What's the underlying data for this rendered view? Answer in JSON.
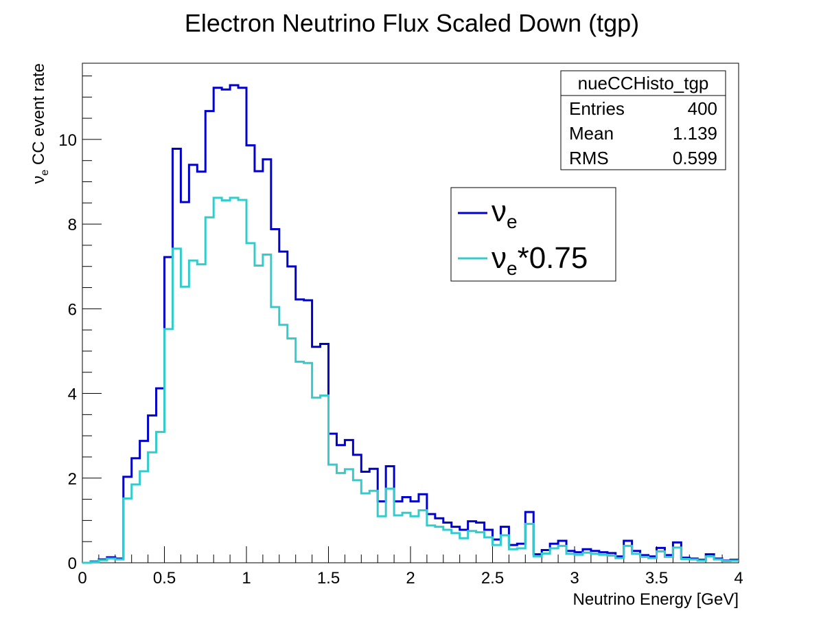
{
  "chart_data": {
    "type": "line",
    "title": "Electron Neutrino Flux Scaled Down (tgp)",
    "xlabel": "Neutrino Energy [GeV]",
    "ylabel": "CC event rate",
    "ylabel_symbol": "ν",
    "ylabel_subscript": "e",
    "xlim": [
      0,
      4
    ],
    "ylim": [
      0,
      11.8
    ],
    "x_ticks": [
      "0",
      "0.5",
      "1",
      "1.5",
      "2",
      "2.5",
      "3",
      "3.5",
      "4"
    ],
    "y_ticks": [
      "0",
      "2",
      "4",
      "6",
      "8",
      "10"
    ],
    "bin_width": 0.05,
    "legend_position": "upper-right",
    "stats_box": {
      "name": "nueCCHisto_tgp",
      "rows": [
        {
          "label": "Entries",
          "value": "400"
        },
        {
          "label": "Mean",
          "value": "1.139"
        },
        {
          "label": "RMS",
          "value": "0.599"
        }
      ]
    },
    "series": [
      {
        "name": "ν",
        "name_subscript": "e",
        "name_suffix": "",
        "color": "#0000cc",
        "values": [
          0.0,
          0.03,
          0.08,
          0.13,
          0.1,
          2.03,
          2.47,
          2.88,
          3.48,
          4.12,
          7.22,
          9.78,
          8.52,
          9.4,
          9.24,
          10.67,
          11.22,
          11.18,
          11.28,
          11.22,
          9.86,
          9.25,
          9.53,
          7.88,
          7.35,
          7.0,
          6.22,
          6.2,
          5.1,
          5.17,
          3.05,
          2.78,
          2.9,
          2.55,
          2.15,
          2.22,
          1.45,
          2.28,
          1.45,
          1.55,
          1.45,
          1.62,
          1.15,
          1.05,
          0.95,
          0.85,
          0.78,
          0.98,
          0.95,
          0.78,
          0.55,
          0.85,
          0.42,
          0.45,
          1.2,
          0.2,
          0.3,
          0.45,
          0.52,
          0.28,
          0.25,
          0.32,
          0.28,
          0.25,
          0.23,
          0.15,
          0.52,
          0.28,
          0.18,
          0.15,
          0.35,
          0.18,
          0.48,
          0.12,
          0.1,
          0.07,
          0.2,
          0.1,
          0.05,
          0.07
        ]
      },
      {
        "name": "ν",
        "name_subscript": "e",
        "name_suffix": "*0.75",
        "color": "#33cccc",
        "values": [
          0.0,
          0.02,
          0.06,
          0.1,
          0.08,
          1.52,
          1.85,
          2.16,
          2.61,
          3.09,
          5.52,
          7.42,
          6.52,
          7.14,
          7.05,
          8.16,
          8.62,
          8.56,
          8.62,
          8.57,
          7.55,
          7.02,
          7.28,
          6.04,
          5.62,
          5.3,
          4.75,
          4.72,
          3.9,
          3.95,
          2.32,
          2.12,
          2.21,
          1.95,
          1.64,
          1.7,
          1.1,
          1.75,
          1.12,
          1.18,
          1.1,
          1.24,
          0.88,
          0.85,
          0.78,
          0.7,
          0.58,
          0.75,
          0.72,
          0.6,
          0.42,
          0.65,
          0.32,
          0.34,
          0.92,
          0.15,
          0.22,
          0.34,
          0.4,
          0.21,
          0.19,
          0.24,
          0.21,
          0.19,
          0.17,
          0.11,
          0.4,
          0.21,
          0.14,
          0.11,
          0.27,
          0.14,
          0.36,
          0.09,
          0.08,
          0.05,
          0.15,
          0.08,
          0.04,
          0.05
        ]
      }
    ]
  }
}
